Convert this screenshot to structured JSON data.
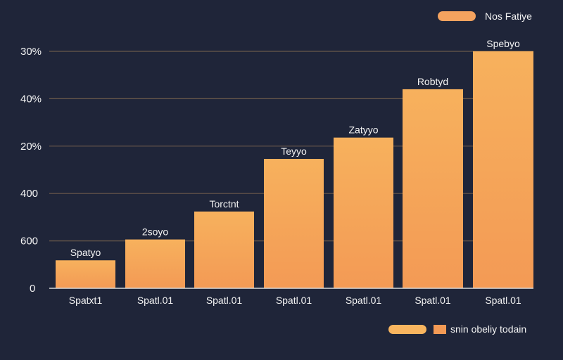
{
  "chart_data": {
    "type": "bar",
    "title": "",
    "xlabel": "",
    "ylabel": "",
    "categories": [
      "Spatxt1",
      "Spatl.01",
      "Spatl.01",
      "Spatl.01",
      "Spatl.01",
      "Spatl.01",
      "Spatl.01"
    ],
    "values": [
      59,
      103,
      162,
      273,
      318,
      420,
      500
    ],
    "bar_labels": [
      "Spatyo",
      "2soyo",
      "Torctnt",
      "Teyyo",
      "Zatyyo",
      "Robtyd",
      "Spebyo"
    ],
    "y_tick_labels": [
      "0",
      "600",
      "400",
      "20%",
      "40%",
      "30%"
    ],
    "ylim": [
      0,
      500
    ],
    "grid": true,
    "legend_position": "top-right",
    "legend": [
      {
        "name": "Nos Fatiye",
        "color": "#f4a35f"
      }
    ],
    "footer_legend": [
      {
        "name": "snin obeliy  todain",
        "color": "#f8b55f"
      }
    ],
    "colors": {
      "background": "#1f2539",
      "bar_top": "#f7b15d",
      "bar_bottom": "#f39a55",
      "grid": "#6b5a4b",
      "axis": "#d9d9d9",
      "text": "#f3f3f3"
    }
  }
}
